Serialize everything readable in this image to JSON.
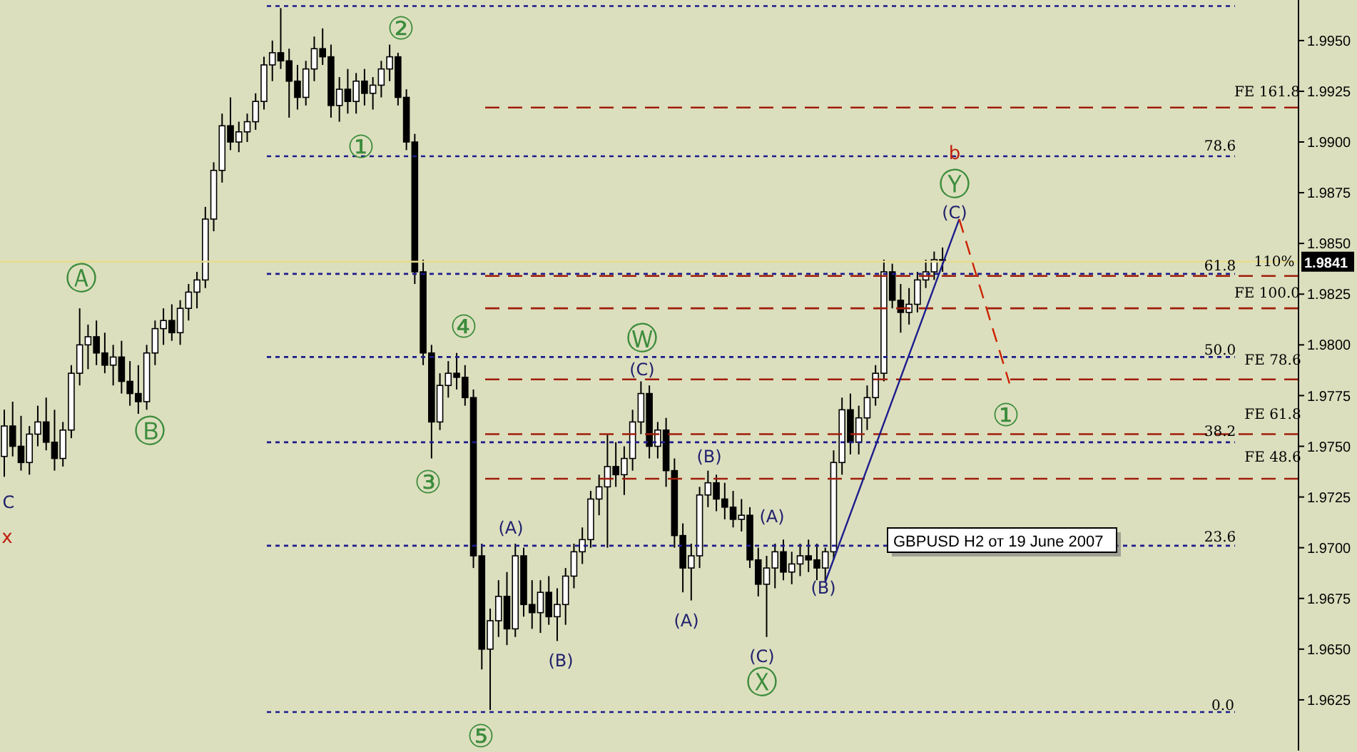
{
  "chart_data": {
    "type": "candlestick",
    "categories": [
      null,
      null,
      null,
      null,
      null,
      null,
      null,
      null,
      null,
      null,
      null,
      null,
      null,
      null,
      null,
      null,
      null,
      null,
      null,
      null,
      null,
      null,
      null,
      null,
      null,
      null,
      null,
      null,
      null,
      null,
      null,
      null,
      null,
      null,
      null,
      null,
      null,
      null,
      null,
      null,
      null,
      null,
      null,
      null,
      null,
      null,
      null,
      null,
      null,
      null,
      null,
      null,
      null,
      null,
      null,
      null,
      null,
      null,
      null,
      null,
      null,
      null,
      null,
      null,
      null,
      null,
      null,
      null,
      null,
      null,
      null,
      null,
      null,
      null,
      null,
      null,
      null,
      null,
      null,
      null,
      null,
      null,
      null,
      null,
      null,
      null,
      null,
      null,
      null,
      null,
      null,
      null,
      null,
      null,
      null,
      null,
      null,
      null,
      null,
      null,
      null,
      null,
      null,
      null,
      null,
      null,
      null,
      null,
      null,
      null,
      null,
      null,
      null,
      null,
      null,
      null,
      null,
      null,
      null,
      null,
      null,
      null,
      null,
      null,
      null,
      null,
      null,
      null,
      null,
      null,
      null,
      null,
      null,
      null,
      null,
      null,
      null,
      null,
      null,
      null,
      null,
      null,
      null,
      null,
      null,
      null,
      null,
      null,
      null,
      null,
      null,
      null,
      null,
      null,
      null
    ],
    "ohlc": [
      [
        1.9745,
        1.9768,
        1.9735,
        1.976
      ],
      [
        1.976,
        1.9772,
        1.9745,
        1.975
      ],
      [
        1.975,
        1.9765,
        1.9738,
        1.9742
      ],
      [
        1.9742,
        1.976,
        1.9736,
        1.9756
      ],
      [
        1.9756,
        1.977,
        1.975,
        1.9762
      ],
      [
        1.9762,
        1.9774,
        1.9748,
        1.9752
      ],
      [
        1.9752,
        1.9768,
        1.9738,
        1.9744
      ],
      [
        1.9744,
        1.9762,
        1.974,
        1.9758
      ],
      [
        1.9758,
        1.979,
        1.9754,
        1.9786
      ],
      [
        1.9786,
        1.9818,
        1.978,
        1.98
      ],
      [
        1.98,
        1.981,
        1.9788,
        1.9804
      ],
      [
        1.9804,
        1.9812,
        1.979,
        1.9796
      ],
      [
        1.9796,
        1.9806,
        1.9786,
        1.979
      ],
      [
        1.979,
        1.98,
        1.978,
        1.9794
      ],
      [
        1.9794,
        1.9802,
        1.9776,
        1.9782
      ],
      [
        1.9782,
        1.9792,
        1.977,
        1.9776
      ],
      [
        1.9776,
        1.979,
        1.9766,
        1.9772
      ],
      [
        1.9772,
        1.98,
        1.9768,
        1.9796
      ],
      [
        1.9796,
        1.9812,
        1.979,
        1.9808
      ],
      [
        1.9808,
        1.9818,
        1.98,
        1.9812
      ],
      [
        1.9812,
        1.982,
        1.9802,
        1.9806
      ],
      [
        1.9806,
        1.9822,
        1.98,
        1.9818
      ],
      [
        1.9818,
        1.983,
        1.9812,
        1.9826
      ],
      [
        1.9826,
        1.9836,
        1.9818,
        1.9832
      ],
      [
        1.9832,
        1.9868,
        1.9828,
        1.9862
      ],
      [
        1.9862,
        1.989,
        1.9856,
        1.9886
      ],
      [
        1.9886,
        1.9914,
        1.988,
        1.9908
      ],
      [
        1.9908,
        1.9922,
        1.9896,
        1.99
      ],
      [
        1.99,
        1.991,
        1.9895,
        1.9905
      ],
      [
        1.9905,
        1.9914,
        1.99,
        1.991
      ],
      [
        1.991,
        1.9924,
        1.9906,
        1.992
      ],
      [
        1.992,
        1.9942,
        1.9916,
        1.9938
      ],
      [
        1.9938,
        1.995,
        1.993,
        1.9944
      ],
      [
        1.9944,
        1.9966,
        1.9936,
        1.994
      ],
      [
        1.994,
        1.9946,
        1.9912,
        1.993
      ],
      [
        1.993,
        1.9938,
        1.9916,
        1.9922
      ],
      [
        1.9922,
        1.994,
        1.9918,
        1.9936
      ],
      [
        1.9936,
        1.9952,
        1.993,
        1.9946
      ],
      [
        1.9946,
        1.9956,
        1.9938,
        1.9942
      ],
      [
        1.9942,
        1.9948,
        1.9912,
        1.9918
      ],
      [
        1.9918,
        1.9932,
        1.991,
        1.9926
      ],
      [
        1.9926,
        1.9936,
        1.9914,
        1.992
      ],
      [
        1.992,
        1.9934,
        1.9914,
        1.993
      ],
      [
        1.993,
        1.9936,
        1.9918,
        1.9924
      ],
      [
        1.9924,
        1.9932,
        1.9916,
        1.9928
      ],
      [
        1.9928,
        1.994,
        1.9922,
        1.9936
      ],
      [
        1.9936,
        1.9948,
        1.993,
        1.9942
      ],
      [
        1.9942,
        1.9944,
        1.9918,
        1.9922
      ],
      [
        1.9922,
        1.9926,
        1.9896,
        1.99
      ],
      [
        1.99,
        1.9904,
        1.983,
        1.9836
      ],
      [
        1.9836,
        1.9842,
        1.979,
        1.9796
      ],
      [
        1.9796,
        1.98,
        1.9744,
        1.9762
      ],
      [
        1.9762,
        1.9786,
        1.9758,
        1.978
      ],
      [
        1.978,
        1.9792,
        1.9774,
        1.9786
      ],
      [
        1.9786,
        1.9796,
        1.9778,
        1.9784
      ],
      [
        1.9784,
        1.979,
        1.977,
        1.9774
      ],
      [
        1.9774,
        1.9778,
        1.969,
        1.9696
      ],
      [
        1.9696,
        1.9702,
        1.964,
        1.965
      ],
      [
        1.965,
        1.967,
        1.962,
        1.9664
      ],
      [
        1.9664,
        1.9684,
        1.9656,
        1.9676
      ],
      [
        1.9676,
        1.9688,
        1.9652,
        1.966
      ],
      [
        1.966,
        1.9702,
        1.9656,
        1.9696
      ],
      [
        1.9696,
        1.97,
        1.9666,
        1.9672
      ],
      [
        1.9672,
        1.9684,
        1.966,
        1.9668
      ],
      [
        1.9668,
        1.9684,
        1.9658,
        1.9678
      ],
      [
        1.9678,
        1.9686,
        1.9662,
        1.9666
      ],
      [
        1.9666,
        1.968,
        1.9654,
        1.9672
      ],
      [
        1.9672,
        1.969,
        1.9662,
        1.9686
      ],
      [
        1.9686,
        1.9702,
        1.968,
        1.9698
      ],
      [
        1.9698,
        1.971,
        1.9692,
        1.9704
      ],
      [
        1.9704,
        1.9728,
        1.97,
        1.9724
      ],
      [
        1.9724,
        1.9736,
        1.9716,
        1.973
      ],
      [
        1.973,
        1.9756,
        1.97,
        1.974
      ],
      [
        1.974,
        1.9752,
        1.973,
        1.9736
      ],
      [
        1.9736,
        1.975,
        1.9726,
        1.9744
      ],
      [
        1.9744,
        1.9768,
        1.9738,
        1.9762
      ],
      [
        1.9762,
        1.9782,
        1.9756,
        1.9776
      ],
      [
        1.9776,
        1.978,
        1.9744,
        1.975
      ],
      [
        1.975,
        1.9762,
        1.9744,
        1.9758
      ],
      [
        1.9758,
        1.9764,
        1.973,
        1.9738
      ],
      [
        1.9738,
        1.9744,
        1.97,
        1.9706
      ],
      [
        1.9706,
        1.9712,
        1.9678,
        1.969
      ],
      [
        1.969,
        1.9702,
        1.9674,
        1.9696
      ],
      [
        1.9696,
        1.973,
        1.969,
        1.9726
      ],
      [
        1.9726,
        1.9738,
        1.972,
        1.9732
      ],
      [
        1.9732,
        1.9736,
        1.9718,
        1.9724
      ],
      [
        1.9724,
        1.9732,
        1.9714,
        1.972
      ],
      [
        1.972,
        1.9728,
        1.971,
        1.9714
      ],
      [
        1.9714,
        1.9724,
        1.9708,
        1.9716
      ],
      [
        1.9716,
        1.972,
        1.969,
        1.9694
      ],
      [
        1.9694,
        1.97,
        1.9676,
        1.9682
      ],
      [
        1.9682,
        1.9696,
        1.9656,
        1.969
      ],
      [
        1.969,
        1.9702,
        1.968,
        1.9698
      ],
      [
        1.9698,
        1.9704,
        1.9684,
        1.9688
      ],
      [
        1.9688,
        1.9698,
        1.9682,
        1.9692
      ],
      [
        1.9692,
        1.9702,
        1.9686,
        1.9696
      ],
      [
        1.9696,
        1.9704,
        1.9688,
        1.9694
      ],
      [
        1.9694,
        1.9702,
        1.9684,
        1.969
      ],
      [
        1.969,
        1.97,
        1.9683,
        1.9698
      ],
      [
        1.9698,
        1.9748,
        1.9694,
        1.9742
      ],
      [
        1.9742,
        1.9774,
        1.9736,
        1.9768
      ],
      [
        1.9768,
        1.9776,
        1.9746,
        1.9752
      ],
      [
        1.9752,
        1.977,
        1.9746,
        1.9764
      ],
      [
        1.9764,
        1.978,
        1.9758,
        1.9774
      ],
      [
        1.9774,
        1.979,
        1.977,
        1.9786
      ],
      [
        1.9786,
        1.9842,
        1.9782,
        1.9836
      ],
      [
        1.9836,
        1.984,
        1.9818,
        1.9822
      ],
      [
        1.9822,
        1.983,
        1.9806,
        1.9816
      ],
      [
        1.9816,
        1.9828,
        1.981,
        1.982
      ],
      [
        1.982,
        1.9836,
        1.9816,
        1.9832
      ],
      [
        1.9832,
        1.9842,
        1.9828,
        1.9836
      ],
      [
        1.9836,
        1.9846,
        1.9832,
        1.9842
      ],
      [
        1.9842,
        1.9848,
        1.9836,
        1.9841
      ],
      null,
      null,
      null,
      null,
      null,
      null,
      null,
      null,
      null,
      null,
      null,
      null,
      null,
      null,
      null,
      null,
      null,
      null,
      null,
      null,
      null,
      null,
      null,
      null,
      null,
      null,
      null,
      null,
      null,
      null,
      null,
      null,
      null,
      null,
      null,
      null,
      null,
      null,
      null,
      null,
      null,
      null
    ],
    "series": [
      {
        "type": "line",
        "color": "#1c1c8c",
        "values": [
          null,
          null,
          null,
          null,
          null,
          null,
          null,
          null,
          null,
          null,
          null,
          null,
          null,
          null,
          null,
          null,
          null,
          null,
          null,
          null,
          null,
          null,
          null,
          null,
          null,
          null,
          null,
          null,
          null,
          null,
          null,
          null,
          null,
          null,
          null,
          null,
          null,
          null,
          null,
          null,
          null,
          null,
          null,
          null,
          null,
          null,
          null,
          null,
          null,
          null,
          null,
          null,
          null,
          null,
          null,
          null,
          null,
          null,
          null,
          null,
          null,
          null,
          null,
          null,
          null,
          null,
          null,
          null,
          null,
          null,
          null,
          null,
          null,
          null,
          null,
          null,
          null,
          null,
          null,
          null,
          null,
          null,
          null,
          null,
          null,
          null,
          null,
          null,
          null,
          null,
          null,
          null,
          null,
          null,
          null,
          null,
          null,
          null,
          1.9683,
          null,
          null,
          null,
          null,
          null,
          null,
          null,
          null,
          null,
          null,
          null,
          null,
          null,
          null,
          null,
          1.9862,
          null,
          null,
          null,
          null,
          null,
          null,
          null,
          null,
          null,
          null,
          null,
          null,
          null,
          null,
          null,
          null,
          null,
          null,
          null,
          null,
          null,
          null,
          null,
          null,
          null,
          null,
          null,
          null,
          null,
          null,
          null,
          null,
          null,
          null,
          null,
          null,
          null,
          null,
          null,
          null
        ]
      },
      {
        "type": "line",
        "color": "#cc2200",
        "line_style": "dashed",
        "values": [
          null,
          null,
          null,
          null,
          null,
          null,
          null,
          null,
          null,
          null,
          null,
          null,
          null,
          null,
          null,
          null,
          null,
          null,
          null,
          null,
          null,
          null,
          null,
          null,
          null,
          null,
          null,
          null,
          null,
          null,
          null,
          null,
          null,
          null,
          null,
          null,
          null,
          null,
          null,
          null,
          null,
          null,
          null,
          null,
          null,
          null,
          null,
          null,
          null,
          null,
          null,
          null,
          null,
          null,
          null,
          null,
          null,
          null,
          null,
          null,
          null,
          null,
          null,
          null,
          null,
          null,
          null,
          null,
          null,
          null,
          null,
          null,
          null,
          null,
          null,
          null,
          null,
          null,
          null,
          null,
          null,
          null,
          null,
          null,
          null,
          null,
          null,
          null,
          null,
          null,
          null,
          null,
          null,
          null,
          null,
          null,
          null,
          null,
          null,
          null,
          null,
          null,
          null,
          null,
          null,
          null,
          null,
          null,
          null,
          null,
          null,
          null,
          null,
          null,
          1.9862,
          null,
          null,
          null,
          null,
          null,
          1.9781,
          null,
          null,
          null,
          null,
          null,
          null,
          null,
          null,
          null,
          null,
          null,
          null,
          null,
          null,
          null,
          null,
          null,
          null,
          null,
          null,
          null,
          null,
          null,
          null,
          null,
          null,
          null,
          null,
          null,
          null,
          null,
          null,
          null,
          null
        ]
      }
    ],
    "ylim": [
      1.96,
      1.997
    ],
    "yticks": [
      {
        "value": 1.9625,
        "label": "1.9625"
      },
      {
        "value": 1.965,
        "label": "1.9650"
      },
      {
        "value": 1.9675,
        "label": "1.9675"
      },
      {
        "value": 1.97,
        "label": "1.9700"
      },
      {
        "value": 1.9725,
        "label": "1.9725"
      },
      {
        "value": 1.975,
        "label": "1.9750"
      },
      {
        "value": 1.9775,
        "label": "1.9775"
      },
      {
        "value": 1.98,
        "label": "1.9800"
      },
      {
        "value": 1.9825,
        "label": "1.9825"
      },
      {
        "value": 1.985,
        "label": "1.9850"
      },
      {
        "value": 1.9875,
        "label": "1.9875"
      },
      {
        "value": 1.99,
        "label": "1.9900"
      },
      {
        "value": 1.9925,
        "label": "1.9925"
      },
      {
        "value": 1.995,
        "label": "1.9950"
      }
    ],
    "tick_labels": "y",
    "grid": false,
    "legend": false,
    "marker": "none",
    "ref_lines": [
      {
        "axis": "y",
        "value": 1.9967,
        "color": "#1c1c8c",
        "line_style": "dotted"
      },
      {
        "axis": "y",
        "value": 1.9893,
        "color": "#1c1c8c",
        "line_style": "dotted"
      },
      {
        "axis": "y",
        "value": 1.9835,
        "color": "#1c1c8c",
        "line_style": "dotted"
      },
      {
        "axis": "y",
        "value": 1.9794,
        "color": "#1c1c8c",
        "line_style": "dotted"
      },
      {
        "axis": "y",
        "value": 1.9752,
        "color": "#1c1c8c",
        "line_style": "dotted"
      },
      {
        "axis": "y",
        "value": 1.9701,
        "color": "#1c1c8c",
        "line_style": "dotted"
      },
      {
        "axis": "y",
        "value": 1.9619,
        "color": "#1c1c8c",
        "line_style": "dotted"
      },
      {
        "axis": "y",
        "value": 1.9917,
        "color": "#a01e0a",
        "line_style": "dashed"
      },
      {
        "axis": "y",
        "value": 1.9834,
        "color": "#a01e0a",
        "line_style": "dashed"
      },
      {
        "axis": "y",
        "value": 1.9818,
        "color": "#a01e0a",
        "line_style": "dashed"
      },
      {
        "axis": "y",
        "value": 1.9783,
        "color": "#a01e0a",
        "line_style": "dashed"
      },
      {
        "axis": "y",
        "value": 1.9756,
        "color": "#a01e0a",
        "line_style": "dashed"
      },
      {
        "axis": "y",
        "value": 1.9734,
        "color": "#a01e0a",
        "line_style": "dashed"
      },
      {
        "axis": "y",
        "value": 1.9841,
        "label": "1.9841",
        "color": "#e6dc8c",
        "line_style": "solid"
      }
    ],
    "annotations": [
      "C",
      "x",
      "Ⓐ",
      "Ⓑ",
      "①",
      "②",
      "③",
      "④",
      "⑤",
      "(A)",
      "(B)",
      "Ⓦ",
      "(C)",
      "(A)",
      "(B)",
      "(A)",
      "(C)",
      "Ⓧ",
      "(B)",
      "b",
      "Ⓨ",
      "(C)",
      "①",
      "GBPUSD H2 от 19 June 2007",
      "78.6",
      "61.8",
      "50.0",
      "38.2",
      "23.6",
      "0.0",
      "FE 161.8",
      "110%",
      "FE 100.0",
      "FE 78.6",
      "FE 61.8",
      "FE 48.6"
    ]
  }
}
